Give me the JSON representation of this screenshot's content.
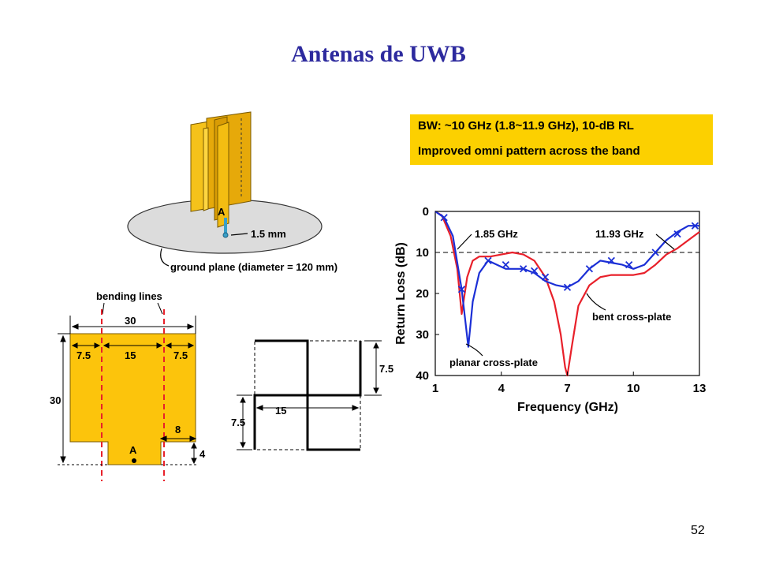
{
  "slide": {
    "title": "Antenas de UWB",
    "page_number": "52"
  },
  "info_box": {
    "line1": "BW: ~10 GHz (1.8~11.9 GHz), 10-dB RL",
    "line2": "Improved omni pattern across the band",
    "color": "#fcd000"
  },
  "antenna_3d": {
    "feed_label": "A",
    "feed_diameter_label": "1.5 mm",
    "ground_plane_label": "ground plane (diameter = 120 mm)"
  },
  "flat_plate": {
    "bending_lines_label": "bending lines",
    "dim_width": "30",
    "dim_left": "7.5",
    "dim_center": "15",
    "dim_right": "7.5",
    "dim_height": "30",
    "dim_notch_width": "8",
    "dim_notch_height": "4",
    "feed_label": "A"
  },
  "top_view": {
    "dim_right": "7.5",
    "dim_left": "7.5",
    "dim_bottom": "15"
  },
  "colors": {
    "plate": "#fcc40c",
    "title": "#2d2a9e",
    "bent_curve": "#e8202a",
    "planar_curve": "#1b2fd6",
    "bending_line": "#e8202a"
  },
  "chart_data": {
    "type": "line",
    "xlabel": "Frequency (GHz)",
    "ylabel": "Return Loss (dB)",
    "xlim": [
      1,
      13
    ],
    "ylim": [
      0,
      40
    ],
    "y_inverted": true,
    "x_ticks": [
      "1",
      "4",
      "7",
      "10",
      "13"
    ],
    "y_ticks": [
      "0",
      "10",
      "20",
      "30",
      "40"
    ],
    "reference_line": 10,
    "annotations": [
      "1.85 GHz",
      "11.93 GHz",
      "bent cross-plate",
      "planar cross-plate"
    ],
    "series": [
      {
        "name": "planar cross-plate",
        "color": "#1b2fd6",
        "marker": "x",
        "x": [
          1,
          1.4,
          1.8,
          2.2,
          2.5,
          2.7,
          3.0,
          3.4,
          3.8,
          4.2,
          4.6,
          5.0,
          5.5,
          6.0,
          6.5,
          7.0,
          7.5,
          8.0,
          8.5,
          9.0,
          9.5,
          10.0,
          10.5,
          11.0,
          11.5,
          12.0,
          12.5,
          13.0
        ],
        "y": [
          0,
          1.5,
          6,
          19,
          33,
          22,
          15,
          12,
          13,
          14,
          14,
          14,
          15,
          17,
          18,
          18.5,
          17,
          14,
          12,
          12.5,
          13,
          14,
          13,
          10,
          7,
          5,
          3.5,
          3.5
        ],
        "markers_x": [
          1.4,
          2.2,
          3.4,
          4.2,
          5.0,
          5.5,
          6.0,
          7.0,
          8.0,
          9.0,
          9.8,
          11.0,
          12.0,
          12.8
        ],
        "markers_y": [
          1.5,
          19,
          12,
          13,
          14,
          14.5,
          16,
          18.5,
          14,
          12,
          13,
          10,
          5.5,
          3.5
        ]
      },
      {
        "name": "bent cross-plate",
        "color": "#e8202a",
        "x": [
          1,
          1.3,
          1.7,
          2.0,
          2.2,
          2.45,
          2.7,
          3.0,
          3.5,
          4.0,
          4.5,
          5.0,
          5.5,
          6.0,
          6.4,
          6.7,
          6.9,
          7.0,
          7.2,
          7.5,
          8.0,
          8.5,
          9.0,
          9.5,
          10.0,
          10.5,
          11.0,
          11.5,
          12.0,
          12.5,
          13.0
        ],
        "y": [
          0,
          1,
          6,
          14,
          25,
          16,
          12,
          11,
          11,
          10.5,
          10,
          10.5,
          12,
          16,
          22,
          30,
          38,
          40,
          33,
          23,
          18,
          16,
          15.5,
          15.5,
          15.5,
          15,
          13,
          10.5,
          9,
          7,
          5
        ]
      }
    ]
  }
}
